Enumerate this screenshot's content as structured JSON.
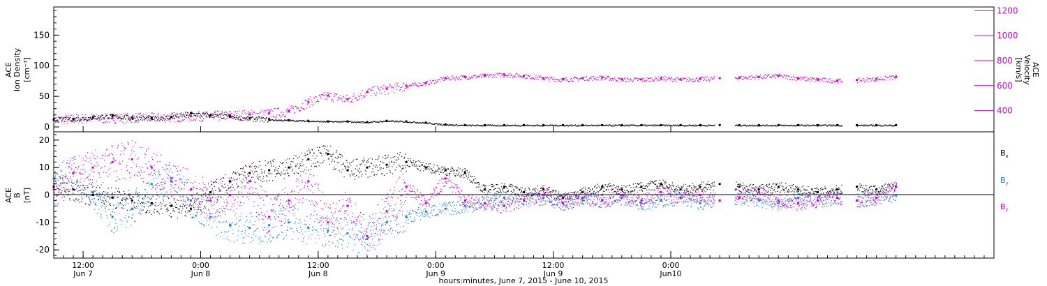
{
  "chart_data": [
    {
      "type": "scatter",
      "panel": "top",
      "ylabel_left": [
        "ACE",
        "Ion Density",
        "[cm⁻³]"
      ],
      "ylabel_right": [
        "ACE",
        "Velocity",
        "[km/s]"
      ],
      "ylim_left": [
        -8,
        196
      ],
      "ylim_right": [
        230,
        1230
      ],
      "yticks_left": [
        "0",
        "50",
        "100",
        "150"
      ],
      "yticks_right": [
        "400",
        "600",
        "800",
        "1000",
        "1200"
      ],
      "colors": {
        "density": "#000000",
        "velocity": "#cc00cc"
      },
      "series": [
        {
          "name": "Ion Density",
          "axis": "left",
          "x_hours": [
            0,
            2,
            4,
            6,
            8,
            10,
            12,
            14,
            16,
            18,
            20,
            22,
            24,
            26,
            28,
            30,
            32,
            34,
            36,
            38,
            40,
            42,
            44,
            46,
            48,
            50,
            52,
            54,
            56,
            58,
            60,
            62,
            64,
            66,
            68,
            70,
            72,
            74,
            76,
            78,
            80,
            82,
            84,
            86
          ],
          "values": [
            12,
            13,
            16,
            18,
            15,
            14,
            16,
            22,
            19,
            17,
            14,
            12,
            11,
            10,
            9,
            9,
            8,
            10,
            9,
            7,
            4,
            3,
            3,
            3,
            3,
            3,
            3,
            3,
            3,
            3,
            3,
            3,
            3,
            3,
            3,
            3,
            3,
            3,
            3,
            3,
            3,
            3,
            3,
            3
          ]
        },
        {
          "name": "Velocity",
          "axis": "right",
          "x_hours": [
            0,
            2,
            4,
            6,
            8,
            10,
            12,
            14,
            16,
            18,
            20,
            22,
            24,
            26,
            28,
            30,
            32,
            34,
            36,
            38,
            40,
            42,
            44,
            46,
            48,
            50,
            52,
            54,
            56,
            58,
            60,
            62,
            64,
            66,
            68,
            70,
            72,
            74,
            76,
            78,
            80,
            82,
            84,
            86
          ],
          "values": [
            330,
            335,
            340,
            340,
            345,
            345,
            350,
            355,
            360,
            365,
            370,
            380,
            395,
            470,
            520,
            490,
            550,
            575,
            600,
            620,
            660,
            670,
            680,
            690,
            680,
            660,
            650,
            660,
            665,
            650,
            650,
            660,
            650,
            655,
            660,
            665,
            670,
            680,
            660,
            650,
            640,
            645,
            655,
            670
          ]
        }
      ]
    },
    {
      "type": "scatter",
      "panel": "bottom",
      "ylabel": [
        "ACE",
        "B",
        "[nT]"
      ],
      "ylim": [
        -23,
        23
      ],
      "yticks": [
        "20",
        "10",
        "0",
        "-10",
        "-20"
      ],
      "legend": [
        "Bx",
        "By",
        "Bz"
      ],
      "colors": {
        "Bx": "#000000",
        "By": "#1a7fd4",
        "Bz": "#cc00cc"
      },
      "series": [
        {
          "name": "Bx",
          "x_hours": [
            0,
            2,
            4,
            6,
            8,
            10,
            12,
            14,
            16,
            18,
            20,
            22,
            24,
            26,
            28,
            30,
            32,
            34,
            36,
            38,
            40,
            42,
            44,
            46,
            48,
            50,
            52,
            54,
            56,
            58,
            60,
            62,
            64,
            66,
            68,
            70,
            72,
            74,
            76,
            78,
            80,
            82,
            84,
            86
          ],
          "values": [
            3,
            2,
            0,
            -1,
            -2,
            -3,
            -4,
            -5,
            1,
            5,
            8,
            9,
            10,
            13,
            15,
            9,
            10,
            11,
            12,
            10,
            9,
            8,
            2,
            3,
            1,
            2,
            -1,
            1,
            3,
            2,
            3,
            4,
            2,
            3,
            4,
            3,
            2,
            3,
            2,
            1,
            2,
            3,
            2,
            3
          ]
        },
        {
          "name": "By",
          "x_hours": [
            0,
            2,
            4,
            6,
            8,
            10,
            12,
            14,
            16,
            18,
            20,
            22,
            24,
            26,
            28,
            30,
            32,
            34,
            36,
            38,
            40,
            42,
            44,
            46,
            48,
            50,
            52,
            54,
            56,
            58,
            60,
            62,
            64,
            66,
            68,
            70,
            72,
            74,
            76,
            78,
            80,
            82,
            84,
            86
          ],
          "values": [
            6,
            8,
            1,
            -8,
            -5,
            4,
            6,
            -2,
            -8,
            -11,
            -12,
            -11,
            -10,
            -12,
            -13,
            -14,
            -16,
            -10,
            -8,
            -6,
            -5,
            -4,
            -3,
            -1,
            -2,
            -1,
            -3,
            -2,
            -2,
            -1,
            -3,
            -2,
            -1,
            -3,
            -2,
            -1,
            -2,
            -3,
            -1,
            -2,
            -1,
            -2,
            -1,
            0
          ]
        },
        {
          "name": "Bz",
          "x_hours": [
            0,
            2,
            4,
            6,
            8,
            10,
            12,
            14,
            16,
            18,
            20,
            22,
            24,
            26,
            28,
            30,
            32,
            34,
            36,
            38,
            40,
            42,
            44,
            46,
            48,
            50,
            52,
            54,
            56,
            58,
            60,
            62,
            64,
            66,
            68,
            70,
            72,
            74,
            76,
            78,
            80,
            82,
            84,
            86
          ],
          "values": [
            2,
            8,
            10,
            12,
            13,
            10,
            5,
            2,
            -2,
            0,
            5,
            -8,
            -2,
            5,
            -10,
            -4,
            -15,
            -6,
            3,
            -3,
            6,
            -2,
            -3,
            -4,
            -2,
            0,
            -3,
            -1,
            -2,
            0,
            -2,
            1,
            -1,
            0,
            -2,
            -1,
            1,
            -2,
            -3,
            -2,
            -1,
            -2,
            -1,
            3
          ]
        }
      ],
      "data_gaps_hours": [
        [
          67.5,
          69.5
        ],
        [
          80.5,
          82
        ],
        [
          86.5,
          88
        ]
      ]
    }
  ],
  "x_axis": {
    "start": "2015-06-07 09:00",
    "xlim_hours": [
      0,
      96
    ],
    "ticks": [
      {
        "hours": 3,
        "time": "12:00",
        "date": "Jun 7"
      },
      {
        "hours": 15,
        "time": "0:00",
        "date": "Jun 8"
      },
      {
        "hours": 27,
        "time": "12:00",
        "date": "Jun 8"
      },
      {
        "hours": 39,
        "time": "0:00",
        "date": "Jun 9"
      },
      {
        "hours": 51,
        "time": "12:00",
        "date": "Jun 9"
      },
      {
        "hours": 63,
        "time": "0:00",
        "date": "Jun10"
      }
    ],
    "xlabel": "hours:minutes, June  7, 2015 - June 10, 2015"
  },
  "legend_labels": {
    "Bx": "B",
    "Bx_sub": "x",
    "By": "B",
    "By_sub": "y",
    "Bz": "B",
    "Bz_sub": "z"
  }
}
